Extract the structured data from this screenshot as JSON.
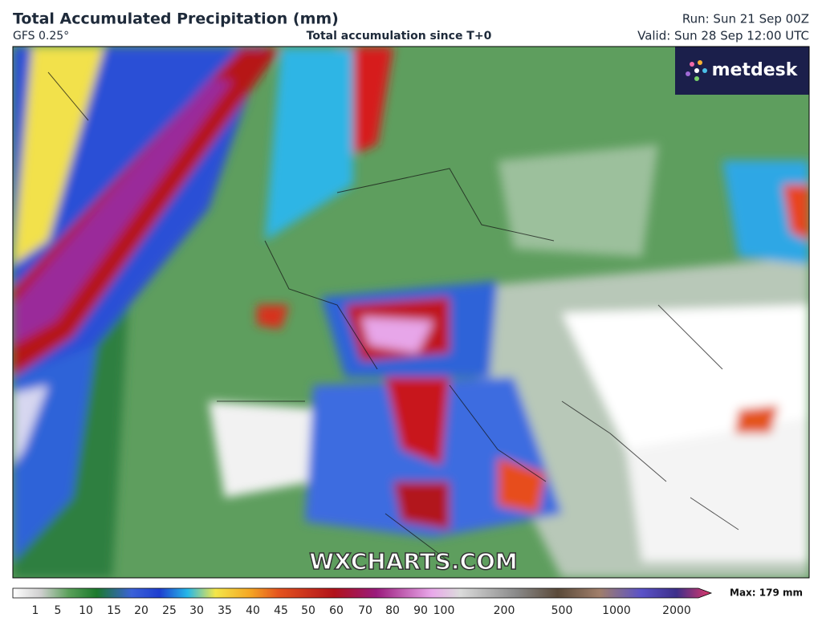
{
  "header": {
    "title": "Total Accumulated Precipitation (mm)",
    "model": "GFS 0.25°",
    "subtitle": "Total accumulation since T+0",
    "run": "Run: Sun 21 Sep 00Z",
    "valid": "Valid: Sun 28 Sep 12:00 UTC"
  },
  "map": {
    "logo": "metdesk",
    "watermark": "WXCHARTS.COM"
  },
  "colorbar": {
    "labels": [
      1,
      5,
      10,
      15,
      20,
      25,
      30,
      35,
      40,
      45,
      50,
      60,
      70,
      80,
      90,
      100,
      200,
      500,
      1000,
      2000
    ],
    "max_label": "Max: 179 mm"
  }
}
